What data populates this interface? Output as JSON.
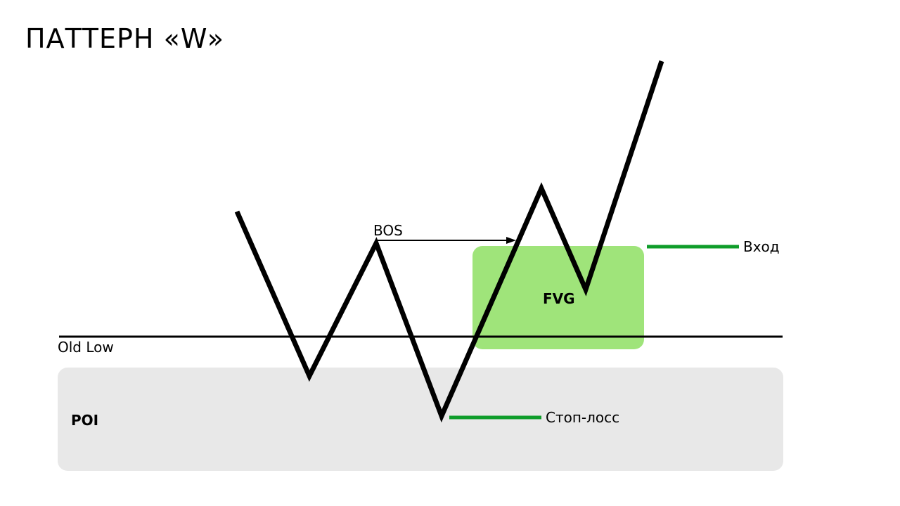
{
  "title": "ПАТТЕРН «W»",
  "zones": {
    "poi_label": "POI",
    "fvg_label": "FVG"
  },
  "labels": {
    "old_low": "Old Low",
    "bos": "BOS",
    "entry": "Вход",
    "stop_loss": "Стоп-лосс"
  },
  "colors": {
    "poi_fill": "#e8e8e8",
    "fvg_fill": "#9fe47a",
    "level_line": "#0f9d2a",
    "price_path": "#000000"
  }
}
